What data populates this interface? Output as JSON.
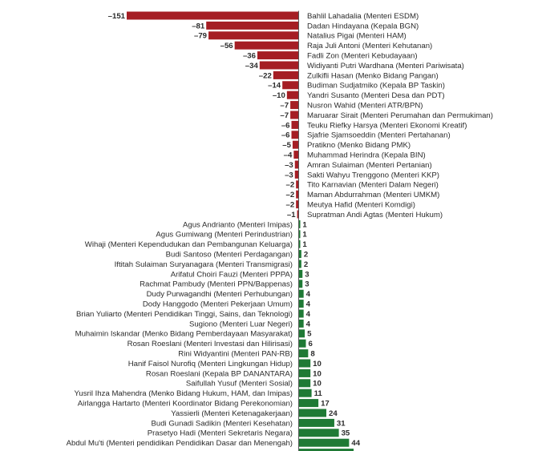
{
  "chart_data": {
    "type": "bar",
    "orientation": "horizontal",
    "title": "",
    "xlabel": "",
    "ylabel": "",
    "xlim": [
      -151,
      44
    ],
    "grid": false,
    "legend": "none",
    "colors": {
      "negative": "#a51e24",
      "positive": "#1f7a35"
    },
    "categories": [
      "Bahlil Lahadalia (Menteri ESDM)",
      "Dadan Hindayana (Kepala BGN)",
      "Natalius Pigai (Menteri HAM)",
      "Raja Juli Antoni (Menteri Kehutanan)",
      "Fadli Zon (Menteri Kebudayaan)",
      "Widiyanti Putri Wardhana (Menteri Pariwisata)",
      "Zulkifli Hasan (Menko Bidang Pangan)",
      "Budiman Sudjatmiko (Kepala BP Taskin)",
      "Yandri Susanto (Menteri Desa dan PDT)",
      "Nusron Wahid (Menteri ATR/BPN)",
      "Maruarar Sirait (Menteri Perumahan dan Permukiman)",
      "Teuku Riefky Harsya (Menteri Ekonomi Kreatif)",
      "Sjafrie Sjamsoeddin (Menteri Pertahanan)",
      "Pratikno (Menko Bidang PMK)",
      "Muhammad Herindra (Kepala BIN)",
      "Amran Sulaiman (Menteri Pertanian)",
      "Sakti Wahyu Trenggono (Menteri KKP)",
      "Tito Karnavian (Menteri Dalam Negeri)",
      "Maman Abdurrahman (Menteri UMKM)",
      "Meutya Hafid (Menteri Komdigi)",
      "Supratman Andi Agtas (Menteri Hukum)",
      "Agus Andrianto (Menteri Imipas)",
      "Agus Gumiwang (Menteri Perindustrian)",
      "Wihaji (Menteri Kependudukan dan Pembangunan Keluarga)",
      "Budi Santoso (Menteri Perdagangan)",
      "Iftitah Sulaiman Suryanagara (Menteri Transmigrasi)",
      "Arifatul Choiri Fauzi (Menteri PPPA)",
      "Rachmat Pambudy (Menteri PPN/Bappenas)",
      "Dudy Purwagandhi (Menteri Perhubungan)",
      "Dody Hanggodo (Menteri Pekerjaan Umum)",
      "Brian Yuliarto (Menteri Pendidikan Tinggi, Sains, dan Teknologi)",
      "Sugiono (Menteri Luar Negeri)",
      "Muhaimin Iskandar (Menko Bidang Pemberdayaan Masyarakat)",
      "Rosan Roeslani (Menteri Investasi dan Hilirisasi)",
      "Rini Widyantini (Menteri PAN-RB)",
      "Hanif Faisol Nurofiq (Menteri Lingkungan Hidup)",
      "Rosan Roeslani (Kepala BP DANANTARA)",
      "Saifullah Yusuf (Menteri Sosial)",
      "Yusril Ihza Mahendra (Menko Bidang Hukum, HAM, dan Imipas)",
      "Airlangga Hartarto (Menteri Koordinator Bidang Perekonomian)",
      "Yassierli (Menteri Ketenagakerjaan)",
      "Budi Gunadi Sadikin (Menteri Kesehatan)",
      "Prasetyo Hadi (Menteri Sekretaris Negara)",
      "Abdul Mu'ti (Menteri pendidikan Pendidikan Dasar dan Menengah)"
    ],
    "values": [
      -151,
      -81,
      -79,
      -56,
      -36,
      -34,
      -22,
      -14,
      -10,
      -7,
      -7,
      -6,
      -6,
      -5,
      -4,
      -3,
      -3,
      -2,
      -2,
      -2,
      -1,
      1,
      1,
      1,
      2,
      2,
      3,
      3,
      4,
      4,
      4,
      4,
      5,
      6,
      8,
      10,
      10,
      10,
      11,
      17,
      24,
      31,
      35,
      44
    ],
    "value_labels": [
      "-151",
      "-81",
      "-79",
      "-56",
      "-36",
      "-34",
      "-22",
      "-14",
      "-10",
      "-7",
      "-7",
      "-6",
      "-6",
      "-5",
      "-4",
      "-3",
      "-3",
      "-2",
      "-2",
      "-2",
      "-1",
      "1",
      "1",
      "1",
      "2",
      "2",
      "3",
      "3",
      "4",
      "4",
      "4",
      "4",
      "5",
      "6",
      "8",
      "10",
      "10",
      "10",
      "11",
      "17",
      "24",
      "31",
      "35",
      "44"
    ],
    "note": "One additional positive bar is cut off at the bottom edge (label not legible)."
  }
}
